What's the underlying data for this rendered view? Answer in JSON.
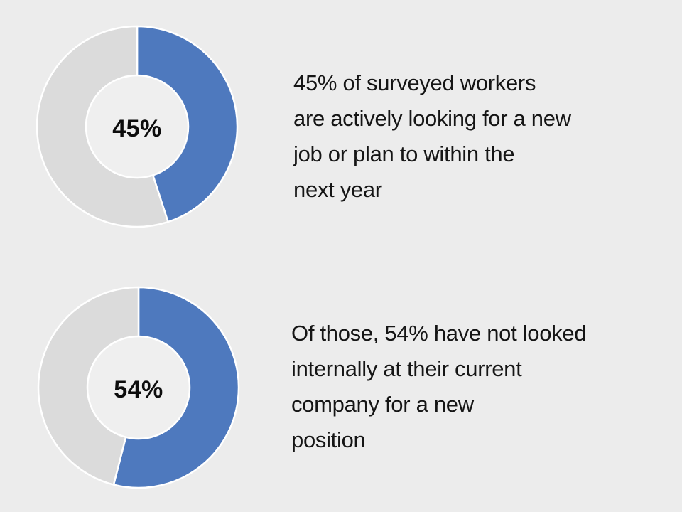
{
  "background": "#ECECEC",
  "colors": {
    "highlight": "#4E79BE",
    "remainder": "#DBDBDB",
    "slice_stroke": "#FFFFFF",
    "hole_fill": "#EFEFEF",
    "caption_text": "#151515",
    "label_text": "#0D0D0D"
  },
  "chart_data": [
    {
      "type": "pie",
      "subtype": "donut",
      "center_label": "45%",
      "categories": [
        "highlighted",
        "remainder"
      ],
      "values": [
        45,
        55
      ],
      "slice_colors": [
        "highlight",
        "remainder"
      ],
      "start_angle_deg": 0,
      "direction": "clockwise",
      "legend": "none",
      "caption": "45% of surveyed workers are actively looking for a new job or plan to within the next year",
      "caption_lines": [
        "45% of surveyed workers",
        "are actively looking for a new",
        "job or plan to within the",
        "next year"
      ]
    },
    {
      "type": "pie",
      "subtype": "donut",
      "center_label": "54%",
      "categories": [
        "highlighted",
        "remainder"
      ],
      "values": [
        54,
        46
      ],
      "slice_colors": [
        "highlight",
        "remainder"
      ],
      "start_angle_deg": 0,
      "direction": "clockwise",
      "legend": "none",
      "caption": "Of those, 54% have not looked internally at their current company for a new position",
      "caption_lines": [
        "Of those, 54% have not looked",
        "internally at their current",
        "company for a new",
        "position"
      ]
    }
  ]
}
